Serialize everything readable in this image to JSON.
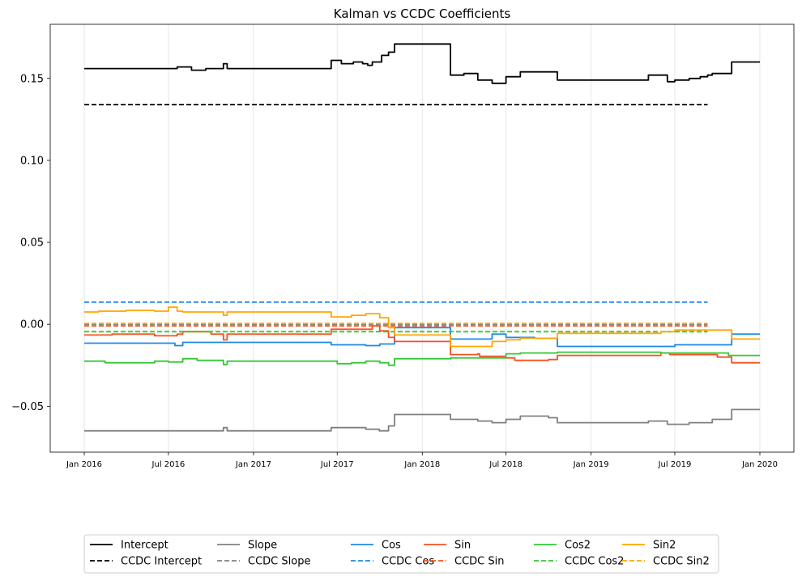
{
  "chart_data": {
    "type": "line",
    "title": "Kalman vs CCDC Coefficients",
    "xlabel": "",
    "ylabel": "",
    "xlim": [
      "2016-01-01",
      "2020-01-01"
    ],
    "ylim": [
      -0.078,
      0.183
    ],
    "yticks": [
      {
        "value": 0.15,
        "label": "0.15"
      },
      {
        "value": 0.1,
        "label": "0.10"
      },
      {
        "value": 0.05,
        "label": "0.05"
      },
      {
        "value": 0.0,
        "label": "0.00"
      },
      {
        "value": -0.05,
        "label": "−0.05"
      }
    ],
    "xticks": [
      {
        "value": "2016-01-01",
        "label": "Jan 2016"
      },
      {
        "value": "2016-07-01",
        "label": "Jul 2016"
      },
      {
        "value": "2017-01-01",
        "label": "Jan 2017"
      },
      {
        "value": "2017-07-01",
        "label": "Jul 2017"
      },
      {
        "value": "2018-01-01",
        "label": "Jan 2018"
      },
      {
        "value": "2018-07-01",
        "label": "Jul 2018"
      },
      {
        "value": "2019-01-01",
        "label": "Jan 2019"
      },
      {
        "value": "2019-07-01",
        "label": "Jul 2019"
      },
      {
        "value": "2020-01-01",
        "label": "Jan 2020"
      }
    ],
    "grid": "vertical",
    "legend_position": "bottom-center",
    "series": [
      {
        "name": "Intercept",
        "color": "#000000",
        "dash": "solid",
        "points": [
          [
            "2016-01-01",
            0.156
          ],
          [
            "2016-03-01",
            0.156
          ],
          [
            "2016-06-01",
            0.156
          ],
          [
            "2016-07-20",
            0.157
          ],
          [
            "2016-08-20",
            0.155
          ],
          [
            "2016-09-20",
            0.156
          ],
          [
            "2016-10-20",
            0.156
          ],
          [
            "2016-10-28",
            0.159
          ],
          [
            "2016-11-05",
            0.156
          ],
          [
            "2017-03-15",
            0.156
          ],
          [
            "2017-06-13",
            0.156
          ],
          [
            "2017-06-18",
            0.161
          ],
          [
            "2017-07-10",
            0.159
          ],
          [
            "2017-07-25",
            0.159
          ],
          [
            "2017-08-05",
            0.16
          ],
          [
            "2017-08-25",
            0.159
          ],
          [
            "2017-09-05",
            0.158
          ],
          [
            "2017-09-15",
            0.16
          ],
          [
            "2017-10-05",
            0.164
          ],
          [
            "2017-10-20",
            0.166
          ],
          [
            "2017-11-02",
            0.171
          ],
          [
            "2018-02-28",
            0.171
          ],
          [
            "2018-03-03",
            0.152
          ],
          [
            "2018-04-01",
            0.153
          ],
          [
            "2018-05-01",
            0.149
          ],
          [
            "2018-06-01",
            0.147
          ],
          [
            "2018-07-01",
            0.151
          ],
          [
            "2018-08-01",
            0.154
          ],
          [
            "2018-09-01",
            0.154
          ],
          [
            "2018-10-01",
            0.154
          ],
          [
            "2018-10-20",
            0.149
          ],
          [
            "2019-05-01",
            0.149
          ],
          [
            "2019-05-05",
            0.152
          ],
          [
            "2019-06-01",
            0.152
          ],
          [
            "2019-06-15",
            0.148
          ],
          [
            "2019-07-01",
            0.149
          ],
          [
            "2019-08-01",
            0.15
          ],
          [
            "2019-08-25",
            0.151
          ],
          [
            "2019-09-10",
            0.152
          ],
          [
            "2019-09-20",
            0.153
          ],
          [
            "2019-10-25",
            0.153
          ],
          [
            "2019-11-01",
            0.16
          ],
          [
            "2020-01-01",
            0.16
          ]
        ]
      },
      {
        "name": "CCDC Intercept",
        "color": "#000000",
        "dash": "dashed",
        "points": [
          [
            "2016-01-01",
            0.134
          ],
          [
            "2019-09-10",
            0.134
          ]
        ]
      },
      {
        "name": "Slope",
        "color": "#808080",
        "dash": "solid",
        "points": [
          [
            "2016-01-01",
            -0.065
          ],
          [
            "2016-07-01",
            -0.065
          ],
          [
            "2016-09-15",
            -0.065
          ],
          [
            "2016-10-28",
            -0.063
          ],
          [
            "2016-11-05",
            -0.065
          ],
          [
            "2017-06-13",
            -0.065
          ],
          [
            "2017-06-18",
            -0.063
          ],
          [
            "2017-08-01",
            -0.063
          ],
          [
            "2017-09-01",
            -0.064
          ],
          [
            "2017-09-30",
            -0.065
          ],
          [
            "2017-10-20",
            -0.062
          ],
          [
            "2017-11-02",
            -0.055
          ],
          [
            "2018-02-28",
            -0.055
          ],
          [
            "2018-03-03",
            -0.058
          ],
          [
            "2018-05-01",
            -0.059
          ],
          [
            "2018-06-01",
            -0.06
          ],
          [
            "2018-07-01",
            -0.058
          ],
          [
            "2018-08-01",
            -0.056
          ],
          [
            "2018-10-01",
            -0.057
          ],
          [
            "2018-10-20",
            -0.06
          ],
          [
            "2019-05-01",
            -0.06
          ],
          [
            "2019-05-05",
            -0.059
          ],
          [
            "2019-06-01",
            -0.059
          ],
          [
            "2019-06-15",
            -0.061
          ],
          [
            "2019-08-01",
            -0.06
          ],
          [
            "2019-09-20",
            -0.058
          ],
          [
            "2019-10-25",
            -0.058
          ],
          [
            "2019-11-01",
            -0.052
          ],
          [
            "2020-01-01",
            -0.052
          ]
        ]
      },
      {
        "name": "CCDC Slope",
        "color": "#808080",
        "dash": "dashed",
        "points": [
          [
            "2016-01-01",
            0.0
          ],
          [
            "2019-09-10",
            0.0
          ]
        ]
      },
      {
        "name": "Cos",
        "color": "#1e88e5",
        "dash": "solid",
        "points": [
          [
            "2016-01-01",
            -0.0115
          ],
          [
            "2016-07-01",
            -0.0115
          ],
          [
            "2016-07-15",
            -0.013
          ],
          [
            "2016-08-01",
            -0.011
          ],
          [
            "2017-06-13",
            -0.011
          ],
          [
            "2017-06-18",
            -0.0125
          ],
          [
            "2017-09-01",
            -0.013
          ],
          [
            "2017-10-01",
            -0.012
          ],
          [
            "2017-11-02",
            -0.002
          ],
          [
            "2018-02-28",
            -0.002
          ],
          [
            "2018-03-03",
            -0.009
          ],
          [
            "2018-05-01",
            -0.009
          ],
          [
            "2018-06-01",
            -0.006
          ],
          [
            "2018-07-01",
            -0.008
          ],
          [
            "2018-09-01",
            -0.0085
          ],
          [
            "2018-10-01",
            -0.0085
          ],
          [
            "2018-10-20",
            -0.0135
          ],
          [
            "2019-05-01",
            -0.0135
          ],
          [
            "2019-06-01",
            -0.0135
          ],
          [
            "2019-07-01",
            -0.0125
          ],
          [
            "2019-10-25",
            -0.0125
          ],
          [
            "2019-11-01",
            -0.006
          ],
          [
            "2020-01-01",
            -0.006
          ]
        ]
      },
      {
        "name": "CCDC Cos",
        "color": "#1e88e5",
        "dash": "dashed",
        "points": [
          [
            "2016-01-01",
            0.0135
          ],
          [
            "2019-09-10",
            0.0135
          ]
        ]
      },
      {
        "name": "Sin",
        "color": "#f4511e",
        "dash": "solid",
        "points": [
          [
            "2016-01-01",
            -0.0065
          ],
          [
            "2016-03-01",
            -0.006
          ],
          [
            "2016-06-01",
            -0.007
          ],
          [
            "2016-07-20",
            -0.006
          ],
          [
            "2016-08-01",
            -0.0045
          ],
          [
            "2016-10-01",
            -0.006
          ],
          [
            "2016-10-28",
            -0.0095
          ],
          [
            "2016-11-05",
            -0.006
          ],
          [
            "2017-06-13",
            -0.006
          ],
          [
            "2017-06-18",
            -0.003
          ],
          [
            "2017-08-01",
            -0.003
          ],
          [
            "2017-09-01",
            -0.003
          ],
          [
            "2017-09-15",
            -0.001
          ],
          [
            "2017-10-01",
            -0.004
          ],
          [
            "2017-10-20",
            -0.008
          ],
          [
            "2017-11-02",
            -0.0105
          ],
          [
            "2018-02-28",
            -0.0105
          ],
          [
            "2018-03-03",
            -0.0185
          ],
          [
            "2018-05-01",
            -0.018
          ],
          [
            "2018-05-05",
            -0.0195
          ],
          [
            "2018-07-01",
            -0.0205
          ],
          [
            "2018-07-20",
            -0.022
          ],
          [
            "2018-09-01",
            -0.022
          ],
          [
            "2018-10-01",
            -0.0215
          ],
          [
            "2018-10-20",
            -0.019
          ],
          [
            "2019-05-01",
            -0.019
          ],
          [
            "2019-06-01",
            -0.0175
          ],
          [
            "2019-06-20",
            -0.0185
          ],
          [
            "2019-09-01",
            -0.0185
          ],
          [
            "2019-10-01",
            -0.02
          ],
          [
            "2019-10-25",
            -0.02
          ],
          [
            "2019-11-01",
            -0.0235
          ],
          [
            "2020-01-01",
            -0.0235
          ]
        ]
      },
      {
        "name": "CCDC Sin",
        "color": "#f4511e",
        "dash": "dashed",
        "points": [
          [
            "2016-01-01",
            -0.001
          ],
          [
            "2019-09-10",
            -0.001
          ]
        ]
      },
      {
        "name": "Cos2",
        "color": "#32c832",
        "dash": "solid",
        "points": [
          [
            "2016-01-01",
            -0.0225
          ],
          [
            "2016-02-15",
            -0.0235
          ],
          [
            "2016-06-01",
            -0.0225
          ],
          [
            "2016-07-01",
            -0.023
          ],
          [
            "2016-08-01",
            -0.021
          ],
          [
            "2016-09-01",
            -0.022
          ],
          [
            "2016-10-28",
            -0.0245
          ],
          [
            "2016-11-05",
            -0.0225
          ],
          [
            "2017-06-13",
            -0.0225
          ],
          [
            "2017-07-01",
            -0.024
          ],
          [
            "2017-08-01",
            -0.0235
          ],
          [
            "2017-09-01",
            -0.0225
          ],
          [
            "2017-10-01",
            -0.0235
          ],
          [
            "2017-10-20",
            -0.025
          ],
          [
            "2017-11-02",
            -0.021
          ],
          [
            "2018-02-28",
            -0.021
          ],
          [
            "2018-03-03",
            -0.0205
          ],
          [
            "2018-05-01",
            -0.0205
          ],
          [
            "2018-06-01",
            -0.0205
          ],
          [
            "2018-07-01",
            -0.018
          ],
          [
            "2018-08-01",
            -0.0175
          ],
          [
            "2018-09-01",
            -0.0175
          ],
          [
            "2018-10-01",
            -0.0175
          ],
          [
            "2018-10-20",
            -0.017
          ],
          [
            "2019-05-01",
            -0.017
          ],
          [
            "2019-06-01",
            -0.0175
          ],
          [
            "2019-10-01",
            -0.0175
          ],
          [
            "2019-10-25",
            -0.019
          ],
          [
            "2020-01-01",
            -0.019
          ]
        ]
      },
      {
        "name": "CCDC Cos2",
        "color": "#32c832",
        "dash": "dashed",
        "points": [
          [
            "2016-01-01",
            -0.0045
          ],
          [
            "2019-09-10",
            -0.0045
          ]
        ]
      },
      {
        "name": "Sin2",
        "color": "#ffa500",
        "dash": "solid",
        "points": [
          [
            "2016-01-01",
            0.0075
          ],
          [
            "2016-02-01",
            0.008
          ],
          [
            "2016-04-01",
            0.0085
          ],
          [
            "2016-06-01",
            0.008
          ],
          [
            "2016-07-01",
            0.0105
          ],
          [
            "2016-07-20",
            0.008
          ],
          [
            "2016-08-01",
            0.0075
          ],
          [
            "2016-10-28",
            0.0055
          ],
          [
            "2016-11-05",
            0.0075
          ],
          [
            "2017-06-13",
            0.0075
          ],
          [
            "2017-06-18",
            0.0045
          ],
          [
            "2017-08-01",
            0.0055
          ],
          [
            "2017-09-01",
            0.0065
          ],
          [
            "2017-10-01",
            0.004
          ],
          [
            "2017-10-20",
            -0.002
          ],
          [
            "2017-11-02",
            -0.0065
          ],
          [
            "2018-02-28",
            -0.0065
          ],
          [
            "2018-03-03",
            -0.0135
          ],
          [
            "2018-05-01",
            -0.0135
          ],
          [
            "2018-06-01",
            -0.0105
          ],
          [
            "2018-07-01",
            -0.0095
          ],
          [
            "2018-08-01",
            -0.0085
          ],
          [
            "2018-09-01",
            -0.0085
          ],
          [
            "2018-10-01",
            -0.0085
          ],
          [
            "2018-10-20",
            -0.0055
          ],
          [
            "2019-05-01",
            -0.0055
          ],
          [
            "2019-06-01",
            -0.0045
          ],
          [
            "2019-07-01",
            -0.0035
          ],
          [
            "2019-10-25",
            -0.0035
          ],
          [
            "2019-11-01",
            -0.009
          ],
          [
            "2020-01-01",
            -0.009
          ]
        ]
      },
      {
        "name": "CCDC Sin2",
        "color": "#ffa500",
        "dash": "dashed",
        "points": [
          [
            "2016-01-01",
            0.0005
          ],
          [
            "2019-09-10",
            0.0005
          ]
        ]
      }
    ]
  }
}
